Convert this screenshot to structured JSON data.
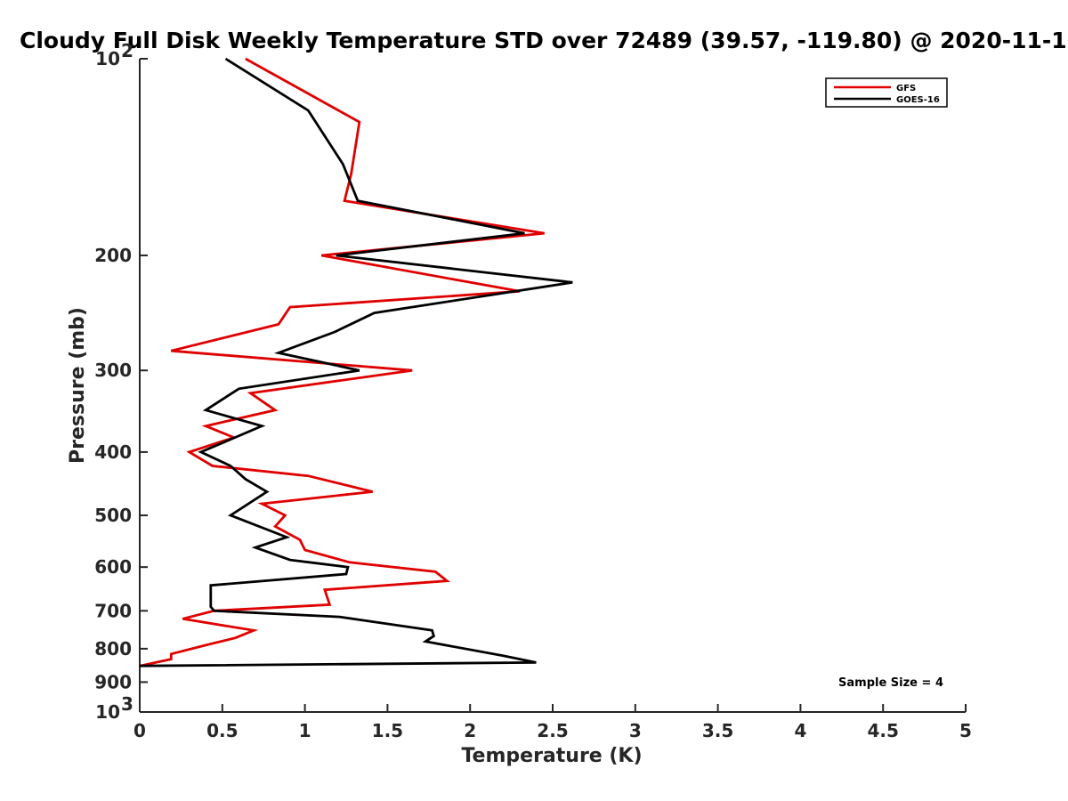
{
  "chart_data": {
    "type": "line",
    "title": "Cloudy Full Disk Weekly Temperature STD over 72489 (39.57, -119.80) @ 2020-11-1",
    "xlabel": "Temperature (K)",
    "ylabel": "Pressure (mb)",
    "xlim": [
      0,
      5
    ],
    "ylim": [
      100,
      1000
    ],
    "yscale": "log",
    "y_reversed": true,
    "grid": false,
    "legend_position": "top-right",
    "x_ticks": [
      "0",
      "0.5",
      "1",
      "1.5",
      "2",
      "2.5",
      "3",
      "3.5",
      "4",
      "4.5",
      "5"
    ],
    "y_ticks": [
      {
        "value": 100,
        "base": "10",
        "exp": "2"
      },
      {
        "value": 200,
        "label": "200"
      },
      {
        "value": 300,
        "label": "300"
      },
      {
        "value": 400,
        "label": "400"
      },
      {
        "value": 500,
        "label": "500"
      },
      {
        "value": 600,
        "label": "600"
      },
      {
        "value": 700,
        "label": "700"
      },
      {
        "value": 800,
        "label": "800"
      },
      {
        "value": 900,
        "label": "900"
      },
      {
        "value": 1000,
        "base": "10",
        "exp": "3"
      }
    ],
    "annotation": "Sample Size = 4",
    "series": [
      {
        "name": "GFS",
        "color": "#e00000",
        "points": [
          [
            0.64,
            100
          ],
          [
            1.33,
            125
          ],
          [
            1.28,
            150
          ],
          [
            1.24,
            165
          ],
          [
            2.45,
            185
          ],
          [
            1.1,
            200
          ],
          [
            2.3,
            227
          ],
          [
            0.91,
            240
          ],
          [
            0.84,
            255
          ],
          [
            0.19,
            280
          ],
          [
            1.65,
            300
          ],
          [
            0.67,
            325
          ],
          [
            0.82,
            345
          ],
          [
            0.4,
            365
          ],
          [
            0.57,
            380
          ],
          [
            0.3,
            400
          ],
          [
            0.44,
            420
          ],
          [
            1.02,
            435
          ],
          [
            1.41,
            460
          ],
          [
            0.74,
            480
          ],
          [
            0.88,
            500
          ],
          [
            0.82,
            520
          ],
          [
            0.97,
            545
          ],
          [
            1.0,
            565
          ],
          [
            1.27,
            590
          ],
          [
            1.79,
            610
          ],
          [
            1.86,
            630
          ],
          [
            1.12,
            650
          ],
          [
            1.15,
            685
          ],
          [
            0.45,
            700
          ],
          [
            0.26,
            720
          ],
          [
            0.69,
            750
          ],
          [
            0.58,
            770
          ],
          [
            0.4,
            790
          ],
          [
            0.19,
            815
          ],
          [
            0.19,
            830
          ],
          [
            0.0,
            850
          ]
        ]
      },
      {
        "name": "GOES-16",
        "color": "#000000",
        "points": [
          [
            0.52,
            100
          ],
          [
            1.02,
            120
          ],
          [
            1.23,
            145
          ],
          [
            1.32,
            165
          ],
          [
            2.33,
            185
          ],
          [
            1.19,
            200
          ],
          [
            2.62,
            220
          ],
          [
            1.42,
            245
          ],
          [
            1.18,
            262
          ],
          [
            0.84,
            282
          ],
          [
            1.33,
            300
          ],
          [
            0.6,
            320
          ],
          [
            0.4,
            345
          ],
          [
            0.74,
            365
          ],
          [
            0.37,
            400
          ],
          [
            0.55,
            420
          ],
          [
            0.64,
            440
          ],
          [
            0.77,
            460
          ],
          [
            0.55,
            500
          ],
          [
            0.89,
            540
          ],
          [
            0.7,
            560
          ],
          [
            0.91,
            585
          ],
          [
            1.26,
            600
          ],
          [
            1.25,
            615
          ],
          [
            0.43,
            640
          ],
          [
            0.43,
            690
          ],
          [
            0.45,
            700
          ],
          [
            1.21,
            715
          ],
          [
            1.77,
            750
          ],
          [
            1.78,
            765
          ],
          [
            1.73,
            780
          ],
          [
            2.2,
            820
          ],
          [
            2.4,
            840
          ],
          [
            0.0,
            850
          ]
        ]
      }
    ]
  }
}
